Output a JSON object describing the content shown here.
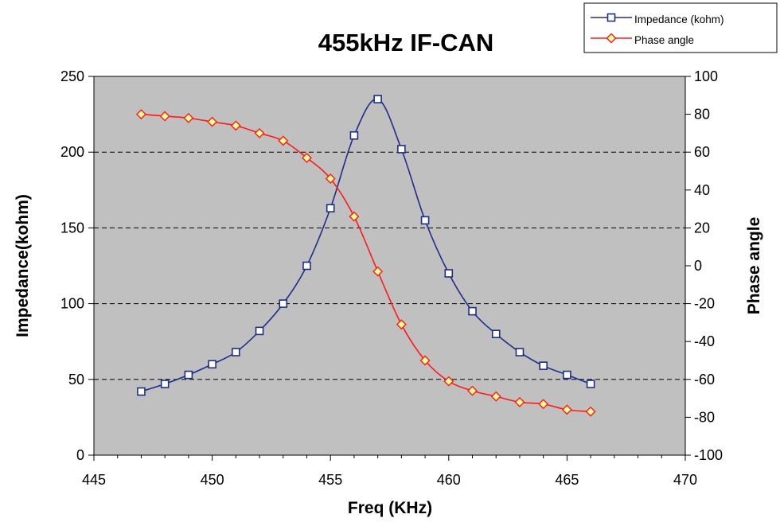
{
  "chart_data": {
    "type": "line",
    "title": "455kHz IF-CAN",
    "xlabel": "Freq (KHz)",
    "ylabel": "Impedance(kohm)",
    "y2label": "Phase angle",
    "xlim": [
      445,
      470
    ],
    "ylim": [
      0,
      250
    ],
    "y2lim": [
      -100,
      100
    ],
    "x_ticks": [
      445,
      450,
      455,
      460,
      465,
      470
    ],
    "y_ticks": [
      0,
      50,
      100,
      150,
      200,
      250
    ],
    "y2_ticks": [
      -100,
      -80,
      -60,
      -40,
      -20,
      0,
      20,
      40,
      60,
      80,
      100
    ],
    "grid": "horizontal-dashed",
    "legend_position": "top-right",
    "x": [
      447,
      448,
      449,
      450,
      451,
      452,
      453,
      454,
      455,
      456,
      457,
      458,
      459,
      460,
      461,
      462,
      463,
      464,
      465,
      466
    ],
    "series": [
      {
        "name": "Impedance (kohm)",
        "axis": "left",
        "color": "#1f2d8a",
        "marker": "square",
        "values": [
          42,
          47,
          53,
          60,
          68,
          82,
          100,
          125,
          163,
          211,
          235,
          202,
          155,
          120,
          95,
          80,
          68,
          59,
          53,
          47
        ]
      },
      {
        "name": "Phase angle",
        "axis": "right",
        "color": "#ff1a1a",
        "marker": "diamond",
        "values": [
          80,
          79,
          78,
          76,
          74,
          70,
          66,
          57,
          46,
          26,
          -3,
          -31,
          -50,
          -61,
          -66,
          -69,
          -72,
          -73,
          -76,
          -77
        ]
      }
    ]
  }
}
